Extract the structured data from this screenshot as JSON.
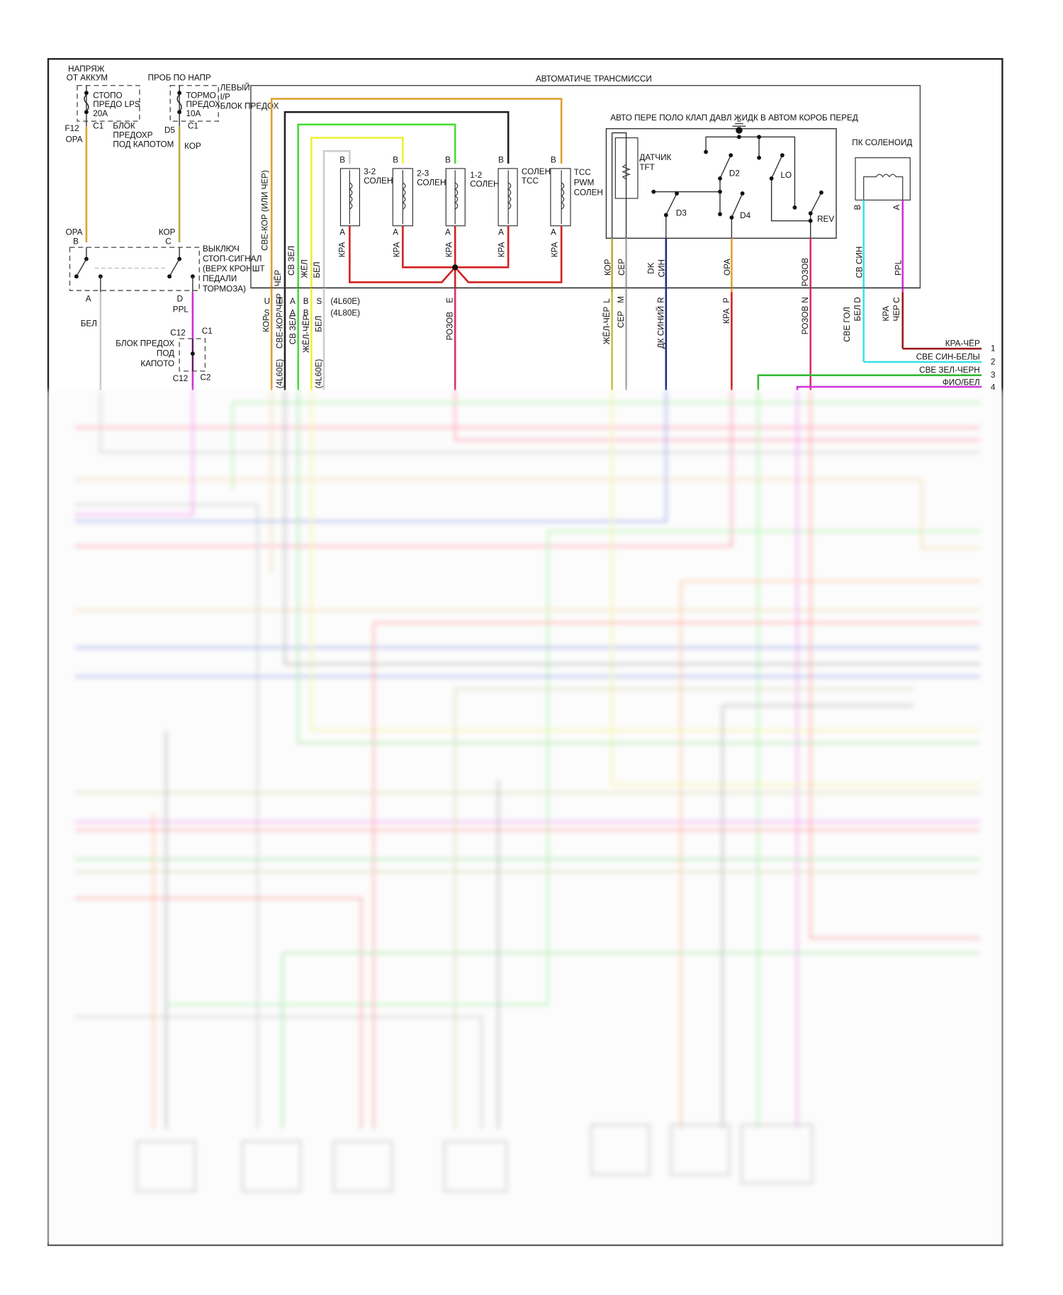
{
  "colors": {
    "orange": "#e0a030",
    "brown": "#b8a040",
    "black": "#222222",
    "green": "#44dd33",
    "yellow": "#f0f030",
    "white": "#cccccc",
    "red": "#d42020",
    "pink": "#d8306a",
    "magenta": "#d030d8",
    "cyan": "#40e0e0",
    "darkblue": "#1a2a90",
    "darkred": "#9a1a1a",
    "gray": "#aaaaaa",
    "olive": "#c0b040"
  },
  "fuses": {
    "battery": [
      "НАПРЯЖ",
      "ОТ АККУМ"
    ],
    "stop_fuse": [
      "СТОПО",
      "ПРЕДО LPS",
      "20A"
    ],
    "f12": "F12",
    "c1a": "C1",
    "opa1": "ОРА",
    "underhood": [
      "БЛОК",
      "ПРЕДОХР",
      "ПОД КАПОТОМ"
    ],
    "hot_in_run": "ПРОБ ПО НАПР",
    "brake_fuse": [
      "ТОРМО",
      "ПРЕДОХ",
      "10A"
    ],
    "left_ip": [
      "ЛЕВЫЙ",
      "I/P",
      "БЛОК ПРЕДОХ"
    ],
    "d5": "D5",
    "c1b": "C1",
    "kop1": "КОР"
  },
  "brake_switch": {
    "wire_b": "ОРА",
    "wire_c": "КОР",
    "pin_b": "B",
    "pin_c": "C",
    "label": [
      "ВЫКЛЮЧ",
      "СТОП-СИГНАЛ",
      "(ВЕРХ КРОНШТ",
      "ПЕДАЛИ",
      "ТОРМОЗА)"
    ],
    "pin_a": "A",
    "pin_d": "D",
    "wire_d": "PPL",
    "wire_a": "БЕЛ"
  },
  "underhood_block": {
    "c12a": "C12",
    "c1": "C1",
    "label": [
      "БЛОК ПРЕДОХ",
      "ПОД",
      "КАПОТО"
    ],
    "c12b": "C12",
    "c2": "C2"
  },
  "transmission": {
    "title": "АВТОМАТИЧЕ ТРАНСМИССИ",
    "solenoids": [
      {
        "name": [
          "3-2",
          "СОЛЕН"
        ],
        "pin_b": "B",
        "pin_a": "A",
        "wire": "КРА"
      },
      {
        "name": [
          "2-3",
          "СОЛЕН"
        ],
        "pin_b": "B",
        "pin_a": "A",
        "wire": "КРА"
      },
      {
        "name": [
          "1-2",
          "СОЛЕН"
        ],
        "pin_b": "B",
        "pin_a": "A",
        "wire": "КРА"
      },
      {
        "name": [
          "СОЛЕН",
          "TCC"
        ],
        "pin_b": "B",
        "pin_a": "A",
        "wire": "КРА"
      },
      {
        "name": [
          "TCC",
          "PWM",
          "СОЛЕН"
        ],
        "pin_b": "B",
        "pin_a": "A",
        "wire": "КРА"
      }
    ],
    "inner_wires": [
      "СВЕ-КОР (ИЛИ ЧЕР)",
      "ЧЁР",
      "СВ ЗЕЛ",
      "ЖЁЛ",
      "БЕЛ"
    ],
    "pins_4l60e": [
      "U",
      "T",
      "A",
      "B",
      "S"
    ],
    "pins_4l80e": [
      "S",
      "",
      "A",
      "B",
      ""
    ],
    "variant_4l60e": "(4L60E)",
    "variant_4l80e": "(4L80E)",
    "outer_wires": [
      "КОР",
      "СВЕ-КОР/ЧЕР",
      "СВ ЗЕЛ",
      "ЖЁЛ-ЧЁР",
      "БЕЛ"
    ],
    "outer_notes": [
      "(4L60E)",
      "(4L60E)"
    ],
    "common_pin": "E",
    "common_wire": "РОЗОВ"
  },
  "pressure_switch": {
    "title": "АВТО ПЕРЕ ПОЛО КЛАП ДАВЛ ЖИДК В АВТОМ КОРОБ ПЕРЕД",
    "sensor": [
      "ДАТЧИК",
      "TFT"
    ],
    "contacts": [
      "D2",
      "LO",
      "D3",
      "D4",
      "REV"
    ],
    "inner_wires": [
      "КОР",
      "СЕР",
      "DK",
      "СИН",
      "ОРА",
      "РОЗОВ"
    ],
    "pins": [
      "L",
      "M",
      "R",
      "P",
      "N"
    ],
    "outer_wires": [
      "ЖЁЛ-ЧЁР",
      "СЕР",
      "ДК СИНИЙ",
      "КРА",
      "РОЗОВ"
    ]
  },
  "pc_solenoid": {
    "title": "ПК СОЛЕНОИД",
    "pin_b": "B",
    "pin_a": "A",
    "inner_wires": [
      "СВ СИН",
      "PPL"
    ],
    "pins": [
      "D",
      "C"
    ],
    "outer_wires": [
      [
        "СВЕ ГОЛ",
        "БЕЛ"
      ],
      [
        "КРА",
        "ЧЕР"
      ]
    ]
  },
  "connector_right": [
    {
      "wire": "КРА-ЧЁР",
      "num": "1"
    },
    {
      "wire": "СВЕ СИН-БЕЛЫ",
      "num": "2"
    },
    {
      "wire": "СВЕ ЗЕЛ-ЧЕРН",
      "num": "3"
    },
    {
      "wire": "ФИО/БЕЛ",
      "num": "4"
    }
  ]
}
